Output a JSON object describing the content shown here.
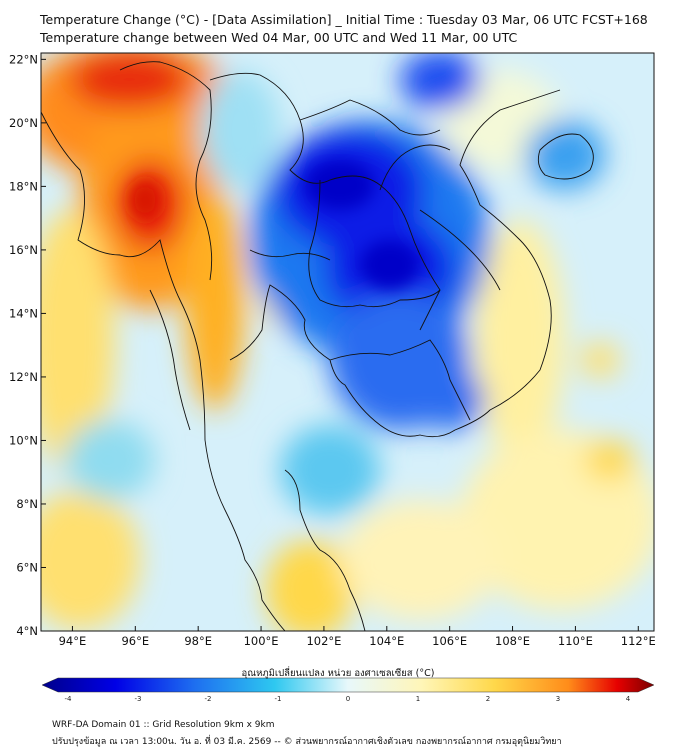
{
  "header": {
    "title_line1": "Temperature Change (°C) - [Data Assimilation] _ Initial Time : Tuesday 03 Mar, 06 UTC FCST+168",
    "title_line2": "Temperature change between Wed 04 Mar, 00 UTC and Wed 11 Mar, 00 UTC"
  },
  "map": {
    "lon_range": [
      93,
      112.5
    ],
    "lat_range": [
      4,
      22.2
    ],
    "lon_ticks": [
      "94°E",
      "96°E",
      "98°E",
      "100°E",
      "102°E",
      "104°E",
      "106°E",
      "108°E",
      "110°E",
      "112°E"
    ],
    "lat_ticks": [
      "22°N",
      "20°N",
      "18°N",
      "16°N",
      "14°N",
      "12°N",
      "10°N",
      "8°N",
      "6°N",
      "4°N"
    ],
    "field_background": "#d6f0fa",
    "boundary_color": "#111111"
  },
  "colorbar": {
    "title": "อุณหภูมิเปลี่ยนแปลง หน่วย องศาเซลเซียส (°C)",
    "ticks": [
      "-4",
      "-3",
      "-2",
      "-1",
      "0",
      "1",
      "2",
      "3",
      "4"
    ],
    "min": -4,
    "max": 4,
    "colors": [
      "#00008b",
      "#0000e6",
      "#1e6ff0",
      "#2ec8f0",
      "#d8f4fa",
      "#fff6b8",
      "#ffd84a",
      "#ff8c1a",
      "#e60000",
      "#7a0000"
    ]
  },
  "footer": {
    "line1": "WRF-DA Domain 01 :: Grid Resolution 9km x 9km",
    "line2": "ปรับปรุงข้อมูล ณ เวลา 13:00น. วัน อ. ที่ 03 มี.ค. 2569 -- © ส่วนพยากรณ์อากาศเชิงตัวเลข กองพยากรณ์อากาศ กรมอุตุนิยมวิทยา"
  }
}
